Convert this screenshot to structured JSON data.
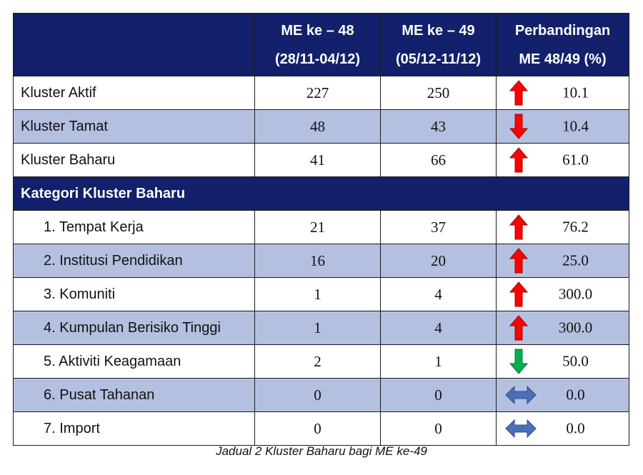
{
  "header": {
    "col_blank": "",
    "col_me48_line1": "ME ke – 48",
    "col_me48_line2": "(28/11-04/12)",
    "col_me49_line1": "ME ke – 49",
    "col_me49_line2": "(05/12-11/12)",
    "col_cmp_line1": "Perbandingan",
    "col_cmp_line2": "ME 48/49 (%)"
  },
  "rows_top": [
    {
      "label": "Kluster Aktif",
      "me48": "227",
      "me49": "250",
      "trend": "up",
      "pct": "10.1"
    },
    {
      "label": "Kluster Tamat",
      "me48": "48",
      "me49": "43",
      "trend": "down",
      "pct": "10.4"
    },
    {
      "label": "Kluster Baharu",
      "me48": "41",
      "me49": "66",
      "trend": "up",
      "pct": "61.0"
    }
  ],
  "category_title": "Kategori Kluster Baharu",
  "rows_cat": [
    {
      "label": "1. Tempat Kerja",
      "me48": "21",
      "me49": "37",
      "trend": "up",
      "pct": "76.2"
    },
    {
      "label": "2. Institusi Pendidikan",
      "me48": "16",
      "me49": "20",
      "trend": "up",
      "pct": "25.0"
    },
    {
      "label": "3. Komuniti",
      "me48": "1",
      "me49": "4",
      "trend": "up",
      "pct": "300.0"
    },
    {
      "label": "4. Kumpulan Berisiko Tinggi",
      "me48": "1",
      "me49": "4",
      "trend": "up",
      "pct": "300.0"
    },
    {
      "label": "5. Aktiviti Keagamaan",
      "me48": "2",
      "me49": "1",
      "trend": "down-green",
      "pct": "50.0"
    },
    {
      "label": "6. Pusat Tahanan",
      "me48": "0",
      "me49": "0",
      "trend": "same",
      "pct": "0.0"
    },
    {
      "label": "7. Import",
      "me48": "0",
      "me49": "0",
      "trend": "same",
      "pct": "0.0"
    }
  ],
  "icons": {
    "up": "arrow-up-icon",
    "down": "arrow-down-icon",
    "down-green": "arrow-down-icon",
    "same": "arrow-left-right-icon"
  },
  "colors": {
    "header_bg": "#13206b",
    "shade_row": "#b4c0e0",
    "arrow_up": "#ff0000",
    "arrow_down": "#ff0000",
    "arrow_down_green": "#00b050",
    "arrow_same": "#4a6fb5"
  },
  "caption": "Jadual 2 Kluster Baharu bagi ME ke-49"
}
